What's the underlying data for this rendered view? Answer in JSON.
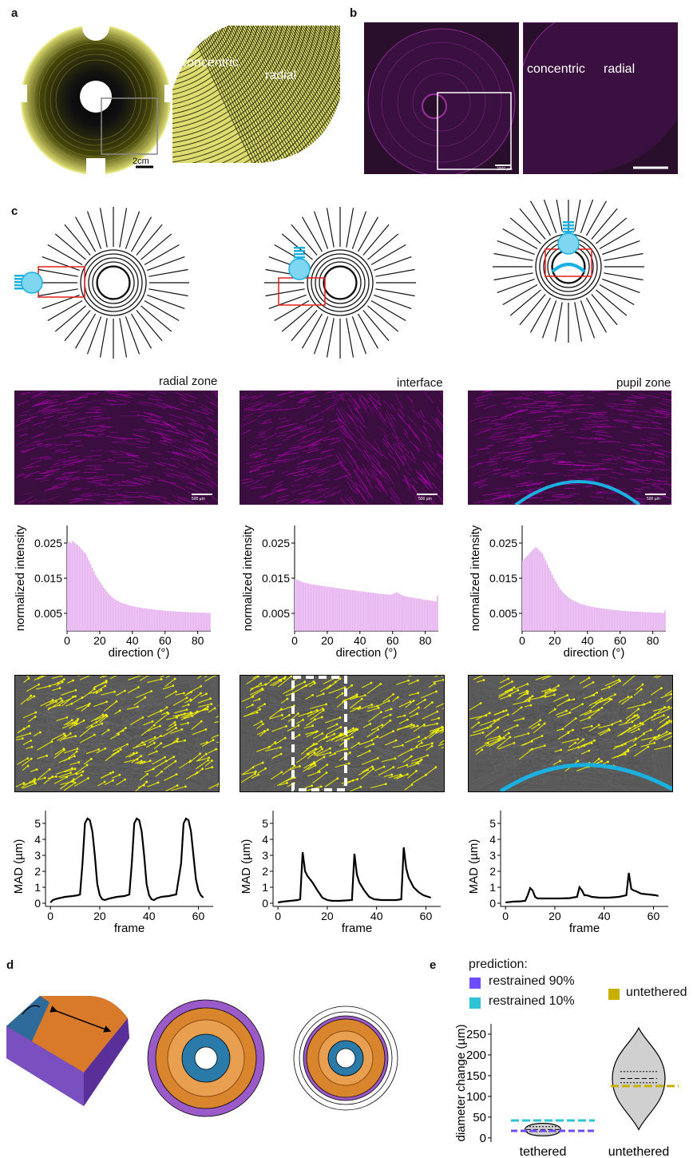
{
  "panels": {
    "a": "a",
    "b": "b",
    "c": "c",
    "d": "d",
    "e": "e"
  },
  "panel_a": {
    "left_scale": "2cm",
    "zoom_label_concentric": "concentric",
    "zoom_label_radial": "radial"
  },
  "panel_b": {
    "scale_text": "2000 µm",
    "zoom_label_concentric": "concentric",
    "zoom_label_radial": "radial"
  },
  "panel_c": {
    "zones": [
      "radial zone",
      "interface",
      "pupil zone"
    ],
    "scale_text": "500 µm",
    "colors": {
      "fiber": "#c700c7",
      "hist": "#e6b3f0",
      "cyan": "#1ab0e0",
      "red": "#e02020",
      "yellow": "#f0f000"
    }
  },
  "chart_data": [
    {
      "type": "bar",
      "id": "hist-radial",
      "xlabel": "direction (°)",
      "ylabel": "normalized intensity",
      "xticks": [
        "0",
        "20",
        "40",
        "60",
        "80"
      ],
      "yticks": [
        "0.025",
        "0.015",
        "0.005"
      ],
      "xlim": [
        0,
        88
      ],
      "ylim": [
        0,
        0.03
      ],
      "values": [
        0.025,
        0.0255,
        0.025,
        0.0255,
        0.0252,
        0.0248,
        0.0245,
        0.024,
        0.0235,
        0.023,
        0.0225,
        0.022,
        0.021,
        0.02,
        0.019,
        0.018,
        0.017,
        0.016,
        0.0152,
        0.0145,
        0.0138,
        0.013,
        0.0124,
        0.0118,
        0.0112,
        0.0106,
        0.0101,
        0.0097,
        0.0093,
        0.009,
        0.0087,
        0.0085,
        0.0082,
        0.008,
        0.0078,
        0.0077,
        0.0075,
        0.0074,
        0.0072,
        0.0071,
        0.007,
        0.0069,
        0.0068,
        0.0067,
        0.0066,
        0.0066,
        0.0065,
        0.0064,
        0.0064,
        0.0063,
        0.0062,
        0.0062,
        0.0061,
        0.0061,
        0.006,
        0.006,
        0.0059,
        0.0059,
        0.0058,
        0.0058,
        0.0057,
        0.0057,
        0.0057,
        0.0056,
        0.0056,
        0.0056,
        0.0055,
        0.0055,
        0.0055,
        0.0055,
        0.0054,
        0.0054,
        0.0054,
        0.0054,
        0.0053,
        0.0053,
        0.0053,
        0.0053,
        0.0053,
        0.0052,
        0.0052,
        0.0052,
        0.0052,
        0.0052,
        0.0052,
        0.0051,
        0.0051,
        0.0051
      ]
    },
    {
      "type": "bar",
      "id": "hist-interface",
      "xlabel": "direction (°)",
      "ylabel": "normalized intensity",
      "xticks": [
        "0",
        "20",
        "40",
        "60",
        "80"
      ],
      "yticks": [
        "0.025",
        "0.015",
        "0.005"
      ],
      "xlim": [
        0,
        88
      ],
      "ylim": [
        0,
        0.03
      ],
      "values": [
        0.0148,
        0.0146,
        0.0144,
        0.0142,
        0.014,
        0.0138,
        0.0137,
        0.0136,
        0.0135,
        0.0134,
        0.0133,
        0.0132,
        0.0131,
        0.0131,
        0.013,
        0.0129,
        0.0128,
        0.0128,
        0.0127,
        0.0126,
        0.0126,
        0.0125,
        0.0124,
        0.0124,
        0.0123,
        0.0122,
        0.0122,
        0.0121,
        0.012,
        0.012,
        0.0119,
        0.0118,
        0.0118,
        0.0117,
        0.0116,
        0.0116,
        0.0115,
        0.0115,
        0.0114,
        0.0113,
        0.0113,
        0.0112,
        0.0112,
        0.0111,
        0.011,
        0.011,
        0.0109,
        0.0109,
        0.0108,
        0.0107,
        0.0107,
        0.0106,
        0.0106,
        0.0105,
        0.0105,
        0.0104,
        0.0104,
        0.0103,
        0.0103,
        0.0104,
        0.0106,
        0.0108,
        0.011,
        0.0108,
        0.0105,
        0.0102,
        0.01,
        0.0099,
        0.0098,
        0.0097,
        0.0096,
        0.0096,
        0.0095,
        0.0094,
        0.0093,
        0.0092,
        0.0092,
        0.0091,
        0.009,
        0.0089,
        0.0088,
        0.0088,
        0.0087,
        0.0086,
        0.0085,
        0.0085,
        0.0084,
        0.01
      ]
    },
    {
      "type": "bar",
      "id": "hist-pupil",
      "xlabel": "direction (°)",
      "ylabel": "normalized intensity",
      "xticks": [
        "0",
        "20",
        "40",
        "60",
        "80"
      ],
      "yticks": [
        "0.025",
        "0.015",
        "0.005"
      ],
      "xlim": [
        0,
        88
      ],
      "ylim": [
        0,
        0.03
      ],
      "values": [
        0.02,
        0.0205,
        0.021,
        0.0215,
        0.022,
        0.0225,
        0.023,
        0.0235,
        0.0238,
        0.0235,
        0.023,
        0.0225,
        0.022,
        0.021,
        0.02,
        0.019,
        0.018,
        0.017,
        0.016,
        0.015,
        0.0142,
        0.0134,
        0.0126,
        0.0119,
        0.0113,
        0.0108,
        0.0103,
        0.0099,
        0.0095,
        0.0092,
        0.0089,
        0.0086,
        0.0084,
        0.0082,
        0.008,
        0.0078,
        0.0076,
        0.0075,
        0.0074,
        0.0072,
        0.0071,
        0.007,
        0.0069,
        0.0068,
        0.0067,
        0.0066,
        0.0066,
        0.0065,
        0.0064,
        0.0064,
        0.0063,
        0.0062,
        0.0062,
        0.0061,
        0.0061,
        0.006,
        0.006,
        0.0059,
        0.0059,
        0.0058,
        0.0058,
        0.0057,
        0.0057,
        0.0057,
        0.0056,
        0.0056,
        0.0056,
        0.0055,
        0.0055,
        0.0055,
        0.0055,
        0.0054,
        0.0054,
        0.0054,
        0.0054,
        0.0053,
        0.0053,
        0.0053,
        0.0053,
        0.0053,
        0.0052,
        0.0052,
        0.0052,
        0.0052,
        0.0052,
        0.0052,
        0.0051,
        0.0058
      ]
    },
    {
      "type": "line",
      "id": "mad-radial",
      "xlabel": "frame",
      "ylabel": "MAD (µm)",
      "xticks": [
        "0",
        "20",
        "40",
        "60"
      ],
      "yticks": [
        "0",
        "1",
        "2",
        "3",
        "4",
        "5"
      ],
      "xlim": [
        -2,
        66
      ],
      "ylim": [
        -0.2,
        5.8
      ],
      "x": [
        0,
        1,
        3,
        6,
        9,
        11,
        12,
        13,
        14,
        15,
        16,
        17,
        18,
        19,
        20,
        21,
        22,
        24,
        27,
        30,
        32,
        33,
        34,
        35,
        36,
        37,
        38,
        39,
        40,
        41,
        42,
        43,
        45,
        48,
        51,
        53,
        54,
        55,
        56,
        57,
        58,
        59,
        60,
        61,
        62
      ],
      "y": [
        0.05,
        0.2,
        0.3,
        0.4,
        0.45,
        0.5,
        0.55,
        2.5,
        5.0,
        5.3,
        5.2,
        4.5,
        3.0,
        1.2,
        0.5,
        0.25,
        0.2,
        0.3,
        0.4,
        0.45,
        0.55,
        2.5,
        5.0,
        5.3,
        5.2,
        4.5,
        3.0,
        1.2,
        0.5,
        0.25,
        0.2,
        0.3,
        0.4,
        0.45,
        0.55,
        2.5,
        5.0,
        5.3,
        5.2,
        4.5,
        3.0,
        1.5,
        0.8,
        0.5,
        0.35
      ]
    },
    {
      "type": "line",
      "id": "mad-interface",
      "xlabel": "frame",
      "ylabel": "MAD (µm)",
      "xticks": [
        "0",
        "20",
        "40",
        "60"
      ],
      "yticks": [
        "0",
        "1",
        "2",
        "3",
        "4",
        "5"
      ],
      "xlim": [
        -2,
        66
      ],
      "ylim": [
        -0.2,
        5.8
      ],
      "x": [
        0,
        2,
        5,
        8,
        9,
        10,
        11,
        12,
        14,
        16,
        18,
        20,
        22,
        25,
        28,
        30,
        31,
        32,
        33,
        35,
        37,
        39,
        42,
        45,
        48,
        50,
        51,
        52,
        53,
        55,
        57,
        59,
        61,
        62
      ],
      "y": [
        0.05,
        0.1,
        0.15,
        0.2,
        0.25,
        3.2,
        2.0,
        1.7,
        1.3,
        0.8,
        0.35,
        0.2,
        0.15,
        0.15,
        0.18,
        0.2,
        3.1,
        1.8,
        1.3,
        0.8,
        0.4,
        0.25,
        0.2,
        0.2,
        0.2,
        0.25,
        3.5,
        2.2,
        1.6,
        1.0,
        0.7,
        0.5,
        0.4,
        0.35
      ]
    },
    {
      "type": "line",
      "id": "mad-pupil",
      "xlabel": "frame",
      "ylabel": "MAD (µm)",
      "xticks": [
        "0",
        "20",
        "40",
        "60"
      ],
      "yticks": [
        "0",
        "1",
        "2",
        "3",
        "4",
        "5"
      ],
      "xlim": [
        -2,
        66
      ],
      "ylim": [
        -0.2,
        5.8
      ],
      "x": [
        0,
        3,
        6,
        8,
        9,
        10,
        11,
        12,
        13,
        15,
        18,
        22,
        26,
        29,
        30,
        31,
        32,
        33,
        35,
        38,
        42,
        46,
        49,
        50,
        51,
        52,
        53,
        55,
        58,
        61,
        62
      ],
      "y": [
        0.05,
        0.1,
        0.12,
        0.15,
        0.5,
        0.95,
        0.8,
        0.4,
        0.3,
        0.3,
        0.3,
        0.3,
        0.32,
        0.4,
        1.0,
        0.8,
        0.5,
        0.5,
        0.4,
        0.35,
        0.35,
        0.4,
        0.5,
        1.9,
        0.9,
        0.8,
        0.75,
        0.6,
        0.55,
        0.5,
        0.45
      ]
    },
    {
      "type": "violin",
      "id": "violin-e",
      "ylabel": "diameter change (µm)",
      "categories": [
        "tethered",
        "untethered"
      ],
      "yticks": [
        "0",
        "50",
        "100",
        "150",
        "200",
        "250"
      ],
      "ylim": [
        -10,
        275
      ],
      "groups": [
        {
          "name": "tethered",
          "min": 5,
          "max": 35,
          "median": 20,
          "q1": 15,
          "q3": 27
        },
        {
          "name": "untethered",
          "min": 20,
          "max": 265,
          "median": 143,
          "q1": 133,
          "q3": 160
        }
      ],
      "predictions": [
        {
          "name": "restrained 90%",
          "value": 17,
          "color": "#6f4cff"
        },
        {
          "name": "restrained 10%",
          "value": 42,
          "color": "#2ec4d6"
        },
        {
          "name": "untethered",
          "value": 125,
          "color": "#c8b000"
        }
      ]
    }
  ],
  "panel_e": {
    "legend_title": "prediction:",
    "legend": [
      "restrained 90%",
      "restrained 10%",
      "untethered"
    ]
  }
}
